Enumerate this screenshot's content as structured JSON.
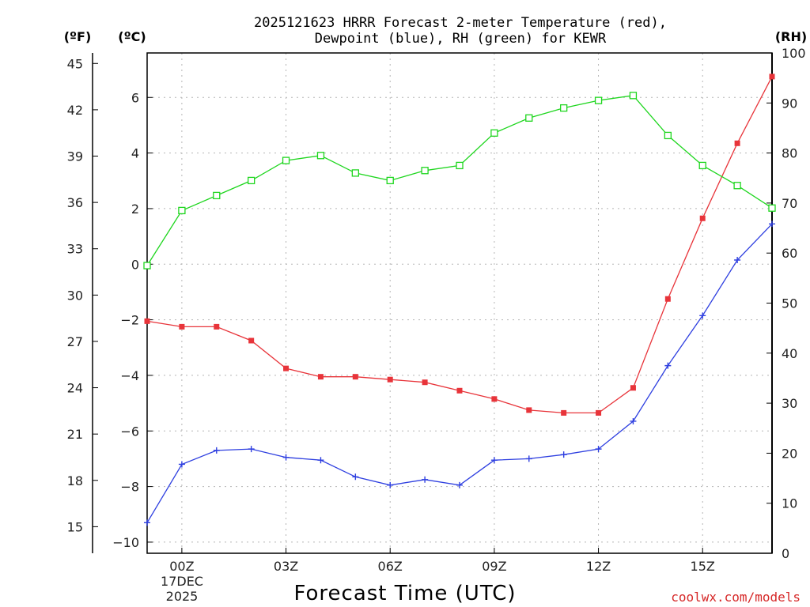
{
  "chart_data": {
    "type": "line",
    "title_line1": "2025121623 HRRR Forecast 2-meter Temperature (red),",
    "title_line2": "Dewpoint (blue), RH (green) for KEWR",
    "xlabel": "Forecast Time (UTC)",
    "date_line1": "17DEC",
    "date_line2": "2025",
    "credit": "coolwx.com/models",
    "units": {
      "fahrenheit": "(ºF)",
      "celsius": "(ºC)",
      "rh": "(RH)"
    },
    "x_hours": [
      -1,
      0,
      1,
      2,
      3,
      4,
      5,
      6,
      7,
      8,
      9,
      10,
      11,
      12,
      13,
      14,
      15,
      16,
      17
    ],
    "x_ticks": [
      {
        "hour": 0,
        "label": "00Z"
      },
      {
        "hour": 3,
        "label": "03Z"
      },
      {
        "hour": 6,
        "label": "06Z"
      },
      {
        "hour": 9,
        "label": "09Z"
      },
      {
        "hour": 12,
        "label": "12Z"
      },
      {
        "hour": 15,
        "label": "15Z"
      }
    ],
    "xlim": [
      -1,
      17
    ],
    "celsius_axis": {
      "ylim": [
        -10.4,
        7.6
      ],
      "ticks": [
        -10,
        -8,
        -6,
        -4,
        -2,
        0,
        2,
        4,
        6
      ],
      "labels": [
        "−10",
        "−8",
        "−6",
        "−4",
        "−2",
        "0",
        "2",
        "4",
        "6"
      ]
    },
    "fahrenheit_axis": {
      "ticks": [
        15,
        18,
        21,
        24,
        27,
        30,
        33,
        36,
        39,
        42,
        45
      ],
      "labels": [
        "15",
        "18",
        "21",
        "24",
        "27",
        "30",
        "33",
        "36",
        "39",
        "42",
        "45"
      ]
    },
    "rh_axis": {
      "ylim": [
        0,
        100
      ],
      "ticks": [
        0,
        10,
        20,
        30,
        40,
        50,
        60,
        70,
        80,
        90,
        100
      ],
      "labels": [
        "0",
        "10",
        "20",
        "30",
        "40",
        "50",
        "60",
        "70",
        "80",
        "90",
        "100"
      ]
    },
    "series": [
      {
        "name": "Temperature",
        "axis": "celsius",
        "color": "#e8343a",
        "marker": "filled-square",
        "values": [
          -2.05,
          -2.25,
          -2.25,
          -2.75,
          -3.75,
          -4.05,
          -4.05,
          -4.15,
          -4.25,
          -4.55,
          -4.85,
          -5.25,
          -5.35,
          -5.35,
          -4.45,
          -1.25,
          1.65,
          4.35,
          6.75
        ]
      },
      {
        "name": "Dewpoint",
        "axis": "celsius",
        "color": "#2e3fe0",
        "marker": "plus",
        "values": [
          -9.3,
          -7.2,
          -6.7,
          -6.65,
          -6.95,
          -7.05,
          -7.65,
          -7.95,
          -7.75,
          -7.95,
          -7.05,
          -7.0,
          -6.85,
          -6.65,
          -5.65,
          -3.65,
          -1.85,
          0.15,
          1.45
        ]
      },
      {
        "name": "RH",
        "axis": "rh",
        "color": "#1ed61e",
        "marker": "open-square",
        "values": [
          57.5,
          68.5,
          71.5,
          74.5,
          78.5,
          79.5,
          76.0,
          74.5,
          76.5,
          77.5,
          84.0,
          87.0,
          89.0,
          90.5,
          91.5,
          83.5,
          77.5,
          73.5,
          69.0
        ]
      }
    ]
  }
}
